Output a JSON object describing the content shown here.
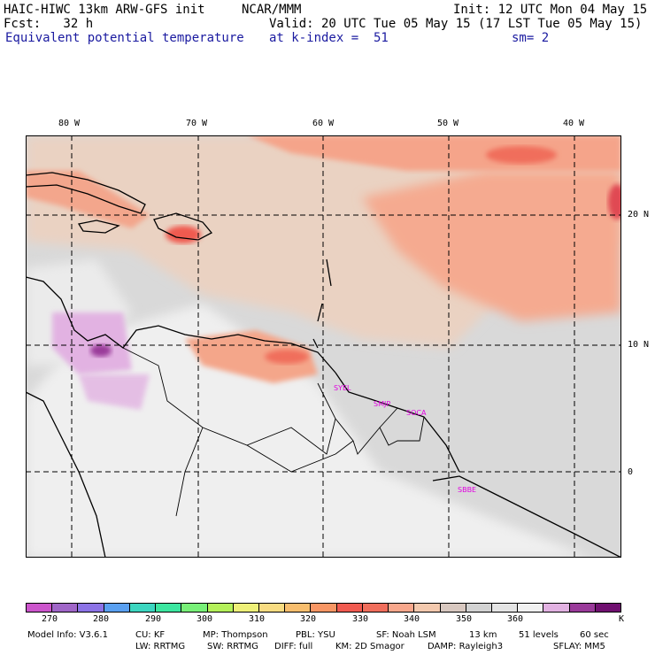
{
  "header": {
    "model": "HAIC-HIWC 13km ARW-GFS init",
    "org": "NCAR/MMM",
    "init": "Init: 12 UTC Mon 04 May 15",
    "fcst": "Fcst:   32 h",
    "valid": "Valid: 20 UTC Tue 05 May 15 (17 LST Tue 05 May 15)",
    "field": "Equivalent potential temperature",
    "level": "at k-index =  51",
    "smooth": "sm= 2"
  },
  "map": {
    "longitude_labels": [
      "80 W",
      "70 W",
      "60 W",
      "50 W",
      "40 W"
    ],
    "latitude_labels": [
      "20 N",
      "10 N",
      "0"
    ],
    "stations": [
      "SYEL",
      "SMJP",
      "SOCA",
      "SBBE"
    ]
  },
  "colorbar": {
    "colors": [
      "#cc55cc",
      "#a066c8",
      "#8c73e6",
      "#5aa0f0",
      "#3cd6c0",
      "#3ce6a0",
      "#78f078",
      "#b4f05a",
      "#eef078",
      "#f8dc82",
      "#f8be6e",
      "#f89664",
      "#f05a50",
      "#f06e5c",
      "#f8a78c",
      "#f3c9ae",
      "#d8c8c0",
      "#d2d2d2",
      "#e4e4e4",
      "#f0f0f0",
      "#e2b2e2",
      "#9a3a9a",
      "#701070"
    ],
    "tick_labels": [
      "270",
      "280",
      "290",
      "300",
      "310",
      "320",
      "330",
      "340",
      "350",
      "360"
    ],
    "unit": "K"
  },
  "footer": {
    "line1": [
      "Model Info: V3.6.1",
      "CU: KF",
      "MP: Thompson",
      "PBL: YSU",
      "SF: Noah LSM",
      "13 km",
      "51 levels",
      "60 sec"
    ],
    "line2": [
      "LW: RRTMG",
      "SW: RRTMG",
      "DIFF: full",
      "KM: 2D Smagor",
      "DAMP: Rayleigh3",
      "SFLAY: MM5"
    ]
  }
}
